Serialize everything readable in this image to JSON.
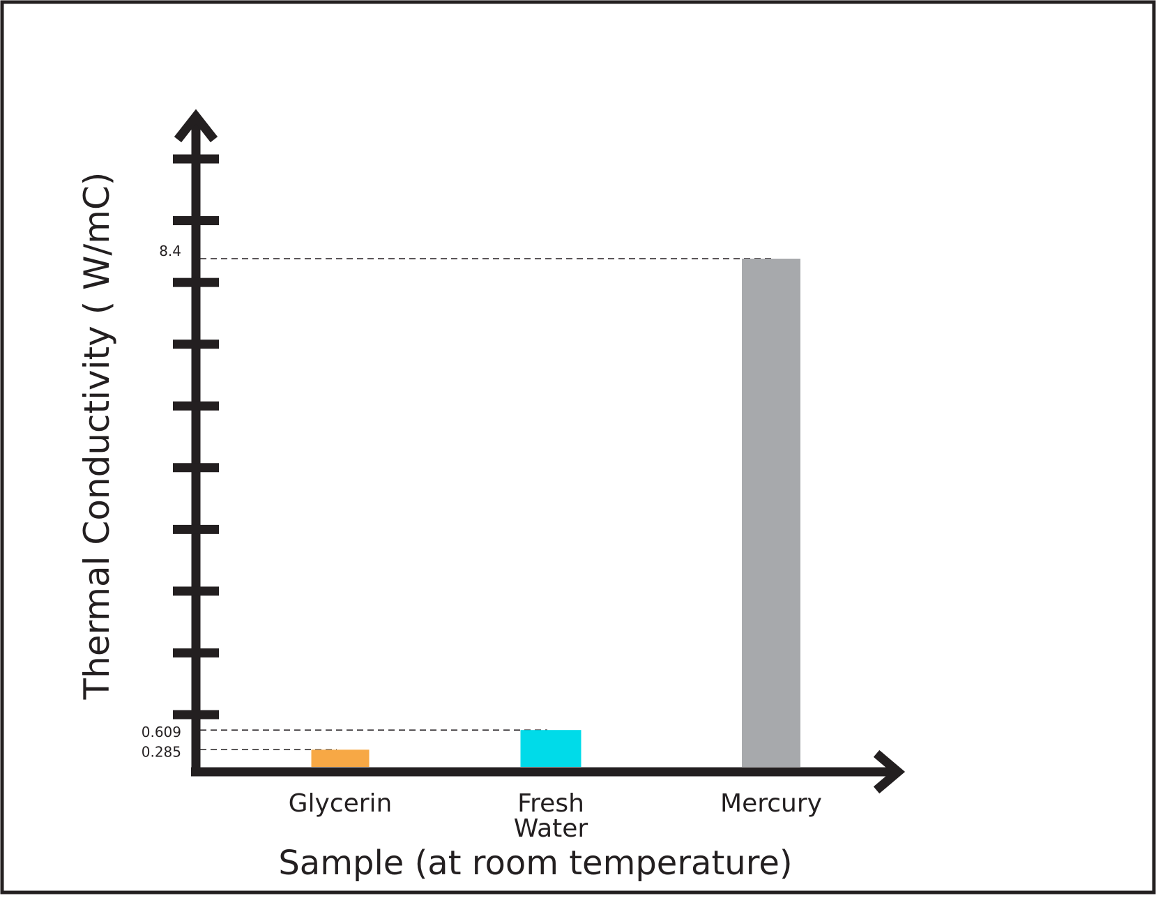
{
  "chart_data": {
    "type": "bar",
    "title": "",
    "xlabel": "Sample (at room temperature)",
    "ylabel": "Thermal Conductivity ( W/mC)",
    "categories": [
      {
        "label": "Glycerin",
        "lines": [
          "Glycerin"
        ]
      },
      {
        "label": "Fresh Water",
        "lines": [
          "Fresh",
          "Water"
        ]
      },
      {
        "label": "Mercury",
        "lines": [
          "Mercury"
        ]
      }
    ],
    "values": [
      0.285,
      0.609,
      8.4
    ],
    "value_labels": [
      "0.285",
      "0.609",
      "8.4"
    ],
    "bar_colors": [
      "#f7a845",
      "#00dbe9",
      "#a7a9ac"
    ],
    "ylim": [
      0,
      10
    ],
    "y_tick_count": 10,
    "y_tick_labels_shown": false,
    "grid": false,
    "legend": "none",
    "reference_lines": "dashed"
  },
  "colors": {
    "axis": "#231f20",
    "frame": "#231f20",
    "background": "#ffffff"
  }
}
